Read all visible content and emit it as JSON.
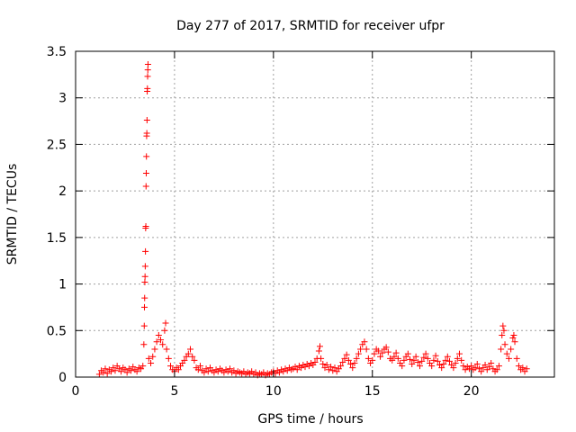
{
  "chart_data": {
    "type": "scatter",
    "title": "Day 277 of 2017, SRMTID for receiver ufpr",
    "xlabel": "GPS time / hours",
    "ylabel": "SRMTID / TECUs",
    "xlim": [
      0,
      24.2
    ],
    "ylim": [
      0,
      3.5
    ],
    "grid": true,
    "marker": "+",
    "marker_color": "#ff0000",
    "xticks": [
      0,
      5,
      10,
      15,
      20
    ],
    "xtick_labels": [
      "0",
      "5",
      "10",
      "15",
      "20"
    ],
    "yticks": [
      0,
      0.5,
      1,
      1.5,
      2,
      2.5,
      3,
      3.5
    ],
    "ytick_labels": [
      "0",
      "0.5",
      "1",
      "1.5",
      "2",
      "2.5",
      "3",
      "3.5"
    ],
    "series": [
      {
        "name": "ufpr",
        "color": "#ff0000",
        "points": [
          [
            1.2,
            0.03
          ],
          [
            1.3,
            0.07
          ],
          [
            1.4,
            0.05
          ],
          [
            1.5,
            0.09
          ],
          [
            1.6,
            0.04
          ],
          [
            1.7,
            0.08
          ],
          [
            1.8,
            0.06
          ],
          [
            1.9,
            0.1
          ],
          [
            2.0,
            0.07
          ],
          [
            2.1,
            0.12
          ],
          [
            2.2,
            0.09
          ],
          [
            2.3,
            0.06
          ],
          [
            2.4,
            0.1
          ],
          [
            2.5,
            0.08
          ],
          [
            2.6,
            0.05
          ],
          [
            2.7,
            0.09
          ],
          [
            2.8,
            0.07
          ],
          [
            2.9,
            0.11
          ],
          [
            3.0,
            0.08
          ],
          [
            3.1,
            0.06
          ],
          [
            3.2,
            0.1
          ],
          [
            3.3,
            0.09
          ],
          [
            3.4,
            0.12
          ],
          [
            3.45,
            0.35
          ],
          [
            3.47,
            0.55
          ],
          [
            3.48,
            0.75
          ],
          [
            3.49,
            0.85
          ],
          [
            3.5,
            1.02
          ],
          [
            3.51,
            1.08
          ],
          [
            3.52,
            1.19
          ],
          [
            3.53,
            1.35
          ],
          [
            3.54,
            1.6
          ],
          [
            3.55,
            1.62
          ],
          [
            3.56,
            2.05
          ],
          [
            3.57,
            2.19
          ],
          [
            3.58,
            2.37
          ],
          [
            3.59,
            2.59
          ],
          [
            3.6,
            2.62
          ],
          [
            3.61,
            2.76
          ],
          [
            3.62,
            3.07
          ],
          [
            3.63,
            3.1
          ],
          [
            3.64,
            3.23
          ],
          [
            3.65,
            3.3
          ],
          [
            3.66,
            3.36
          ],
          [
            3.7,
            0.2
          ],
          [
            3.8,
            0.15
          ],
          [
            3.9,
            0.22
          ],
          [
            4.0,
            0.3
          ],
          [
            4.1,
            0.38
          ],
          [
            4.2,
            0.45
          ],
          [
            4.3,
            0.4
          ],
          [
            4.4,
            0.35
          ],
          [
            4.5,
            0.5
          ],
          [
            4.55,
            0.58
          ],
          [
            4.6,
            0.3
          ],
          [
            4.7,
            0.2
          ],
          [
            4.8,
            0.12
          ],
          [
            4.9,
            0.08
          ],
          [
            5.0,
            0.06
          ],
          [
            5.1,
            0.1
          ],
          [
            5.2,
            0.08
          ],
          [
            5.3,
            0.12
          ],
          [
            5.4,
            0.15
          ],
          [
            5.5,
            0.18
          ],
          [
            5.6,
            0.22
          ],
          [
            5.7,
            0.25
          ],
          [
            5.8,
            0.3
          ],
          [
            5.9,
            0.22
          ],
          [
            6.0,
            0.18
          ],
          [
            6.1,
            0.1
          ],
          [
            6.2,
            0.08
          ],
          [
            6.3,
            0.12
          ],
          [
            6.4,
            0.07
          ],
          [
            6.5,
            0.05
          ],
          [
            6.6,
            0.09
          ],
          [
            6.7,
            0.06
          ],
          [
            6.8,
            0.1
          ],
          [
            6.9,
            0.07
          ],
          [
            7.0,
            0.05
          ],
          [
            7.1,
            0.08
          ],
          [
            7.2,
            0.06
          ],
          [
            7.3,
            0.09
          ],
          [
            7.4,
            0.07
          ],
          [
            7.5,
            0.05
          ],
          [
            7.6,
            0.08
          ],
          [
            7.7,
            0.06
          ],
          [
            7.8,
            0.09
          ],
          [
            7.9,
            0.05
          ],
          [
            8.0,
            0.07
          ],
          [
            8.1,
            0.04
          ],
          [
            8.2,
            0.06
          ],
          [
            8.3,
            0.05
          ],
          [
            8.4,
            0.04
          ],
          [
            8.5,
            0.06
          ],
          [
            8.6,
            0.03
          ],
          [
            8.7,
            0.05
          ],
          [
            8.8,
            0.04
          ],
          [
            8.9,
            0.06
          ],
          [
            9.0,
            0.03
          ],
          [
            9.1,
            0.05
          ],
          [
            9.2,
            0.02
          ],
          [
            9.3,
            0.04
          ],
          [
            9.4,
            0.03
          ],
          [
            9.5,
            0.05
          ],
          [
            9.6,
            0.02
          ],
          [
            9.7,
            0.04
          ],
          [
            9.8,
            0.03
          ],
          [
            9.9,
            0.05
          ],
          [
            10.0,
            0.06
          ],
          [
            10.1,
            0.04
          ],
          [
            10.2,
            0.07
          ],
          [
            10.3,
            0.05
          ],
          [
            10.4,
            0.08
          ],
          [
            10.5,
            0.06
          ],
          [
            10.6,
            0.09
          ],
          [
            10.7,
            0.07
          ],
          [
            10.8,
            0.1
          ],
          [
            10.9,
            0.08
          ],
          [
            11.0,
            0.09
          ],
          [
            11.1,
            0.11
          ],
          [
            11.2,
            0.08
          ],
          [
            11.3,
            0.12
          ],
          [
            11.4,
            0.1
          ],
          [
            11.5,
            0.13
          ],
          [
            11.6,
            0.11
          ],
          [
            11.7,
            0.14
          ],
          [
            11.8,
            0.12
          ],
          [
            11.9,
            0.15
          ],
          [
            12.0,
            0.13
          ],
          [
            12.1,
            0.16
          ],
          [
            12.2,
            0.2
          ],
          [
            12.3,
            0.28
          ],
          [
            12.35,
            0.33
          ],
          [
            12.4,
            0.2
          ],
          [
            12.5,
            0.14
          ],
          [
            12.6,
            0.1
          ],
          [
            12.7,
            0.13
          ],
          [
            12.8,
            0.08
          ],
          [
            12.9,
            0.11
          ],
          [
            13.0,
            0.07
          ],
          [
            13.1,
            0.1
          ],
          [
            13.2,
            0.06
          ],
          [
            13.3,
            0.09
          ],
          [
            13.4,
            0.12
          ],
          [
            13.5,
            0.16
          ],
          [
            13.6,
            0.2
          ],
          [
            13.7,
            0.24
          ],
          [
            13.8,
            0.18
          ],
          [
            13.9,
            0.14
          ],
          [
            14.0,
            0.1
          ],
          [
            14.1,
            0.15
          ],
          [
            14.2,
            0.2
          ],
          [
            14.3,
            0.25
          ],
          [
            14.4,
            0.3
          ],
          [
            14.5,
            0.35
          ],
          [
            14.6,
            0.38
          ],
          [
            14.7,
            0.3
          ],
          [
            14.8,
            0.2
          ],
          [
            14.9,
            0.15
          ],
          [
            15.0,
            0.18
          ],
          [
            15.1,
            0.25
          ],
          [
            15.2,
            0.3
          ],
          [
            15.3,
            0.28
          ],
          [
            15.4,
            0.22
          ],
          [
            15.5,
            0.26
          ],
          [
            15.6,
            0.3
          ],
          [
            15.7,
            0.32
          ],
          [
            15.8,
            0.27
          ],
          [
            15.9,
            0.2
          ],
          [
            16.0,
            0.18
          ],
          [
            16.1,
            0.22
          ],
          [
            16.2,
            0.26
          ],
          [
            16.3,
            0.2
          ],
          [
            16.4,
            0.15
          ],
          [
            16.5,
            0.12
          ],
          [
            16.6,
            0.18
          ],
          [
            16.7,
            0.22
          ],
          [
            16.8,
            0.25
          ],
          [
            16.9,
            0.19
          ],
          [
            17.0,
            0.14
          ],
          [
            17.1,
            0.18
          ],
          [
            17.2,
            0.22
          ],
          [
            17.3,
            0.16
          ],
          [
            17.4,
            0.12
          ],
          [
            17.5,
            0.17
          ],
          [
            17.6,
            0.21
          ],
          [
            17.7,
            0.25
          ],
          [
            17.8,
            0.2
          ],
          [
            17.9,
            0.15
          ],
          [
            18.0,
            0.12
          ],
          [
            18.1,
            0.18
          ],
          [
            18.2,
            0.23
          ],
          [
            18.3,
            0.17
          ],
          [
            18.4,
            0.13
          ],
          [
            18.5,
            0.1
          ],
          [
            18.6,
            0.14
          ],
          [
            18.7,
            0.18
          ],
          [
            18.8,
            0.22
          ],
          [
            18.9,
            0.17
          ],
          [
            19.0,
            0.13
          ],
          [
            19.1,
            0.1
          ],
          [
            19.2,
            0.15
          ],
          [
            19.3,
            0.2
          ],
          [
            19.4,
            0.25
          ],
          [
            19.5,
            0.18
          ],
          [
            19.6,
            0.12
          ],
          [
            19.7,
            0.08
          ],
          [
            19.8,
            0.11
          ],
          [
            19.9,
            0.09
          ],
          [
            20.0,
            0.12
          ],
          [
            20.1,
            0.08
          ],
          [
            20.2,
            0.1
          ],
          [
            20.3,
            0.14
          ],
          [
            20.4,
            0.09
          ],
          [
            20.5,
            0.06
          ],
          [
            20.6,
            0.1
          ],
          [
            20.7,
            0.13
          ],
          [
            20.8,
            0.08
          ],
          [
            20.9,
            0.11
          ],
          [
            21.0,
            0.15
          ],
          [
            21.1,
            0.09
          ],
          [
            21.2,
            0.06
          ],
          [
            21.3,
            0.08
          ],
          [
            21.4,
            0.12
          ],
          [
            21.5,
            0.3
          ],
          [
            21.55,
            0.45
          ],
          [
            21.6,
            0.55
          ],
          [
            21.65,
            0.5
          ],
          [
            21.7,
            0.35
          ],
          [
            21.8,
            0.25
          ],
          [
            21.9,
            0.2
          ],
          [
            22.0,
            0.3
          ],
          [
            22.1,
            0.42
          ],
          [
            22.15,
            0.45
          ],
          [
            22.2,
            0.38
          ],
          [
            22.3,
            0.2
          ],
          [
            22.4,
            0.12
          ],
          [
            22.5,
            0.08
          ],
          [
            22.6,
            0.1
          ],
          [
            22.7,
            0.06
          ],
          [
            22.8,
            0.09
          ]
        ]
      }
    ]
  }
}
